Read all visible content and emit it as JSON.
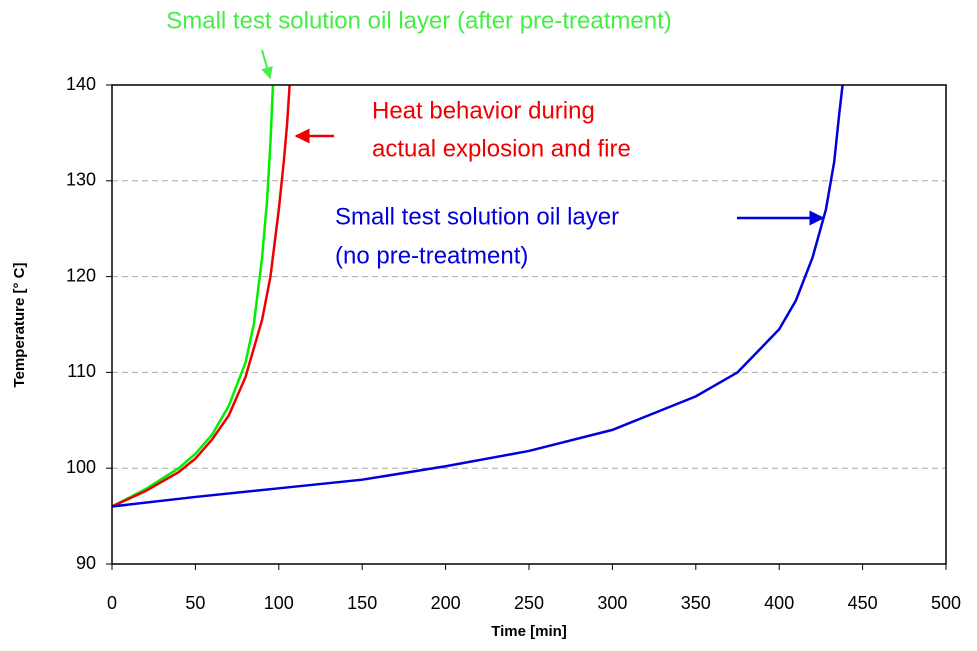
{
  "chart_data": {
    "type": "line",
    "xlabel": "Time [min]",
    "ylabel": "Temperature [° C]",
    "xlim": [
      0,
      500
    ],
    "xticks": [
      0,
      50,
      100,
      150,
      200,
      250,
      300,
      350,
      400,
      450,
      500
    ],
    "ylim": [
      90,
      140
    ],
    "yticks": [
      90,
      100,
      110,
      120,
      130,
      140
    ],
    "grid": true,
    "series": [
      {
        "color": "#00ee00",
        "x": [
          0,
          20,
          40,
          50,
          60,
          70,
          80,
          85,
          90,
          93,
          95,
          96.5
        ],
        "values": [
          96,
          97.8,
          100,
          101.5,
          103.5,
          106.5,
          111,
          115,
          122,
          128,
          134,
          140
        ]
      },
      {
        "color": "#ee0000",
        "x": [
          0,
          20,
          40,
          50,
          60,
          70,
          80,
          90,
          95,
          100,
          103,
          105,
          106.5
        ],
        "values": [
          96,
          97.6,
          99.6,
          101,
          103,
          105.5,
          109.5,
          115.5,
          120,
          127,
          132,
          136,
          140
        ]
      },
      {
        "color": "#0000dd",
        "x": [
          0,
          50,
          100,
          150,
          200,
          250,
          300,
          350,
          375,
          400,
          410,
          420,
          428,
          433,
          436,
          438
        ],
        "values": [
          96,
          97,
          97.9,
          98.8,
          100.2,
          101.8,
          104,
          107.5,
          110,
          114.5,
          117.5,
          122,
          127,
          132,
          137,
          140
        ]
      }
    ],
    "annotations": [
      {
        "text": "Small test solution oil layer (after pre-treatment)",
        "color": "#44ee44"
      },
      {
        "text": "Heat behavior during",
        "color": "#ee0000"
      },
      {
        "text": "actual explosion and fire",
        "color": "#ee0000"
      },
      {
        "text": "Small test solution oil layer",
        "color": "#0000dd"
      },
      {
        "text": "(no pre-treatment)",
        "color": "#0000dd"
      }
    ]
  }
}
